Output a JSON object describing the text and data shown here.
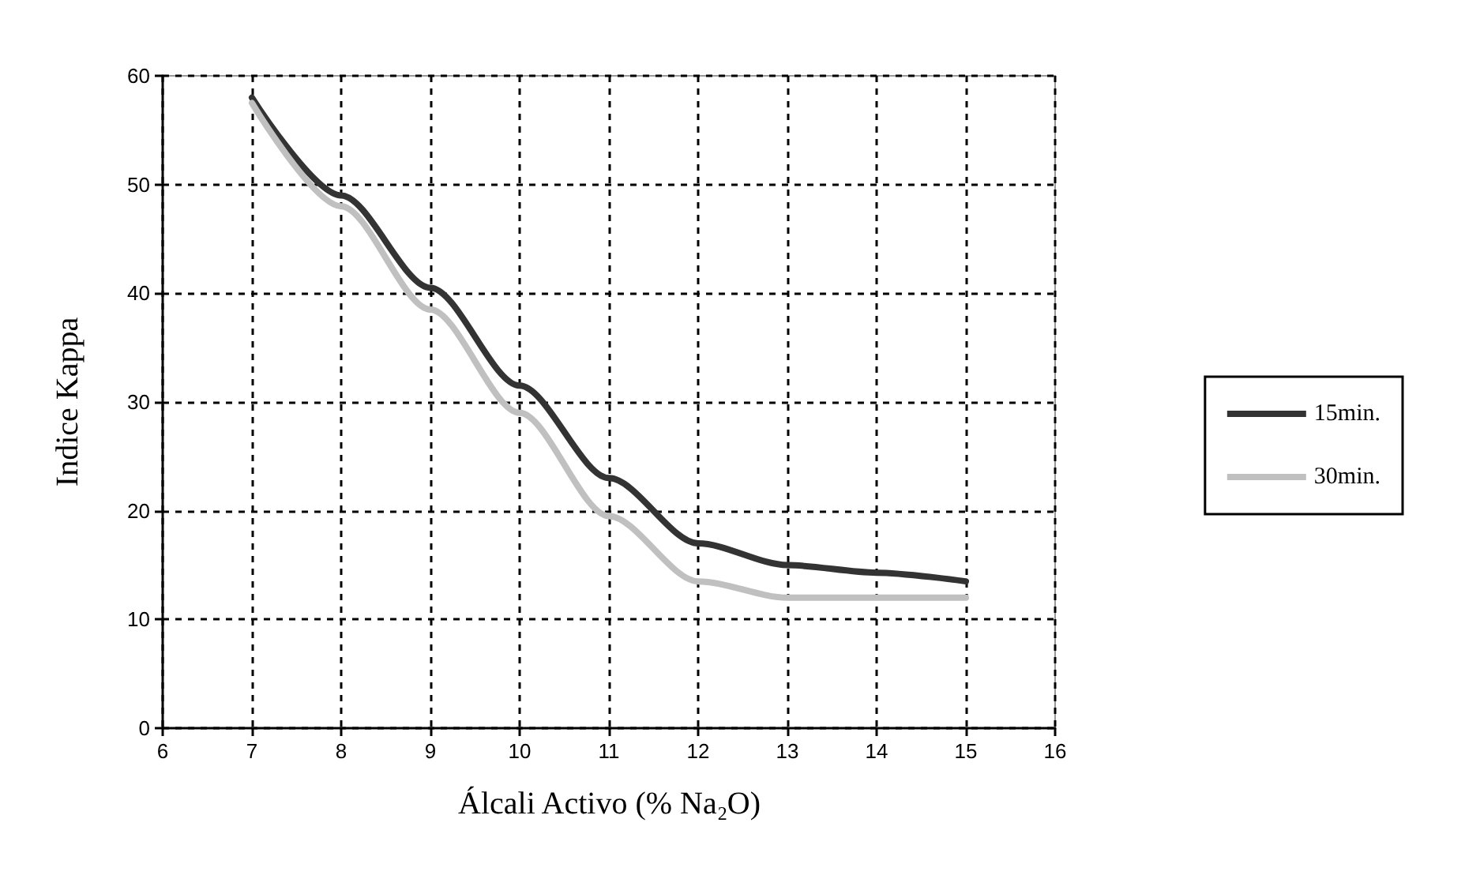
{
  "chart_data": {
    "type": "line",
    "xlabel": "Álcali Activo (% Na$_{2}$O)",
    "ylabel": "Indice Kappa",
    "x": [
      7,
      8,
      9,
      10,
      11,
      12,
      13,
      14,
      15
    ],
    "series": [
      {
        "name": "15min.",
        "color": "#333333",
        "values": [
          58,
          49,
          40.5,
          31.5,
          23,
          17,
          15,
          14.3,
          13.5
        ]
      },
      {
        "name": "30min.",
        "color": "#c0c0c0",
        "values": [
          57.5,
          48,
          38.5,
          29,
          19.5,
          13.5,
          12,
          12,
          12
        ]
      }
    ],
    "xlim": [
      6,
      16
    ],
    "xticks": [
      6,
      7,
      8,
      9,
      10,
      11,
      12,
      13,
      14,
      15,
      16
    ],
    "ylim": [
      0,
      60
    ],
    "yticks": [
      0,
      10,
      20,
      30,
      40,
      50,
      60
    ],
    "grid": true,
    "legend": "right",
    "marker": "none",
    "line_style": "solid"
  }
}
